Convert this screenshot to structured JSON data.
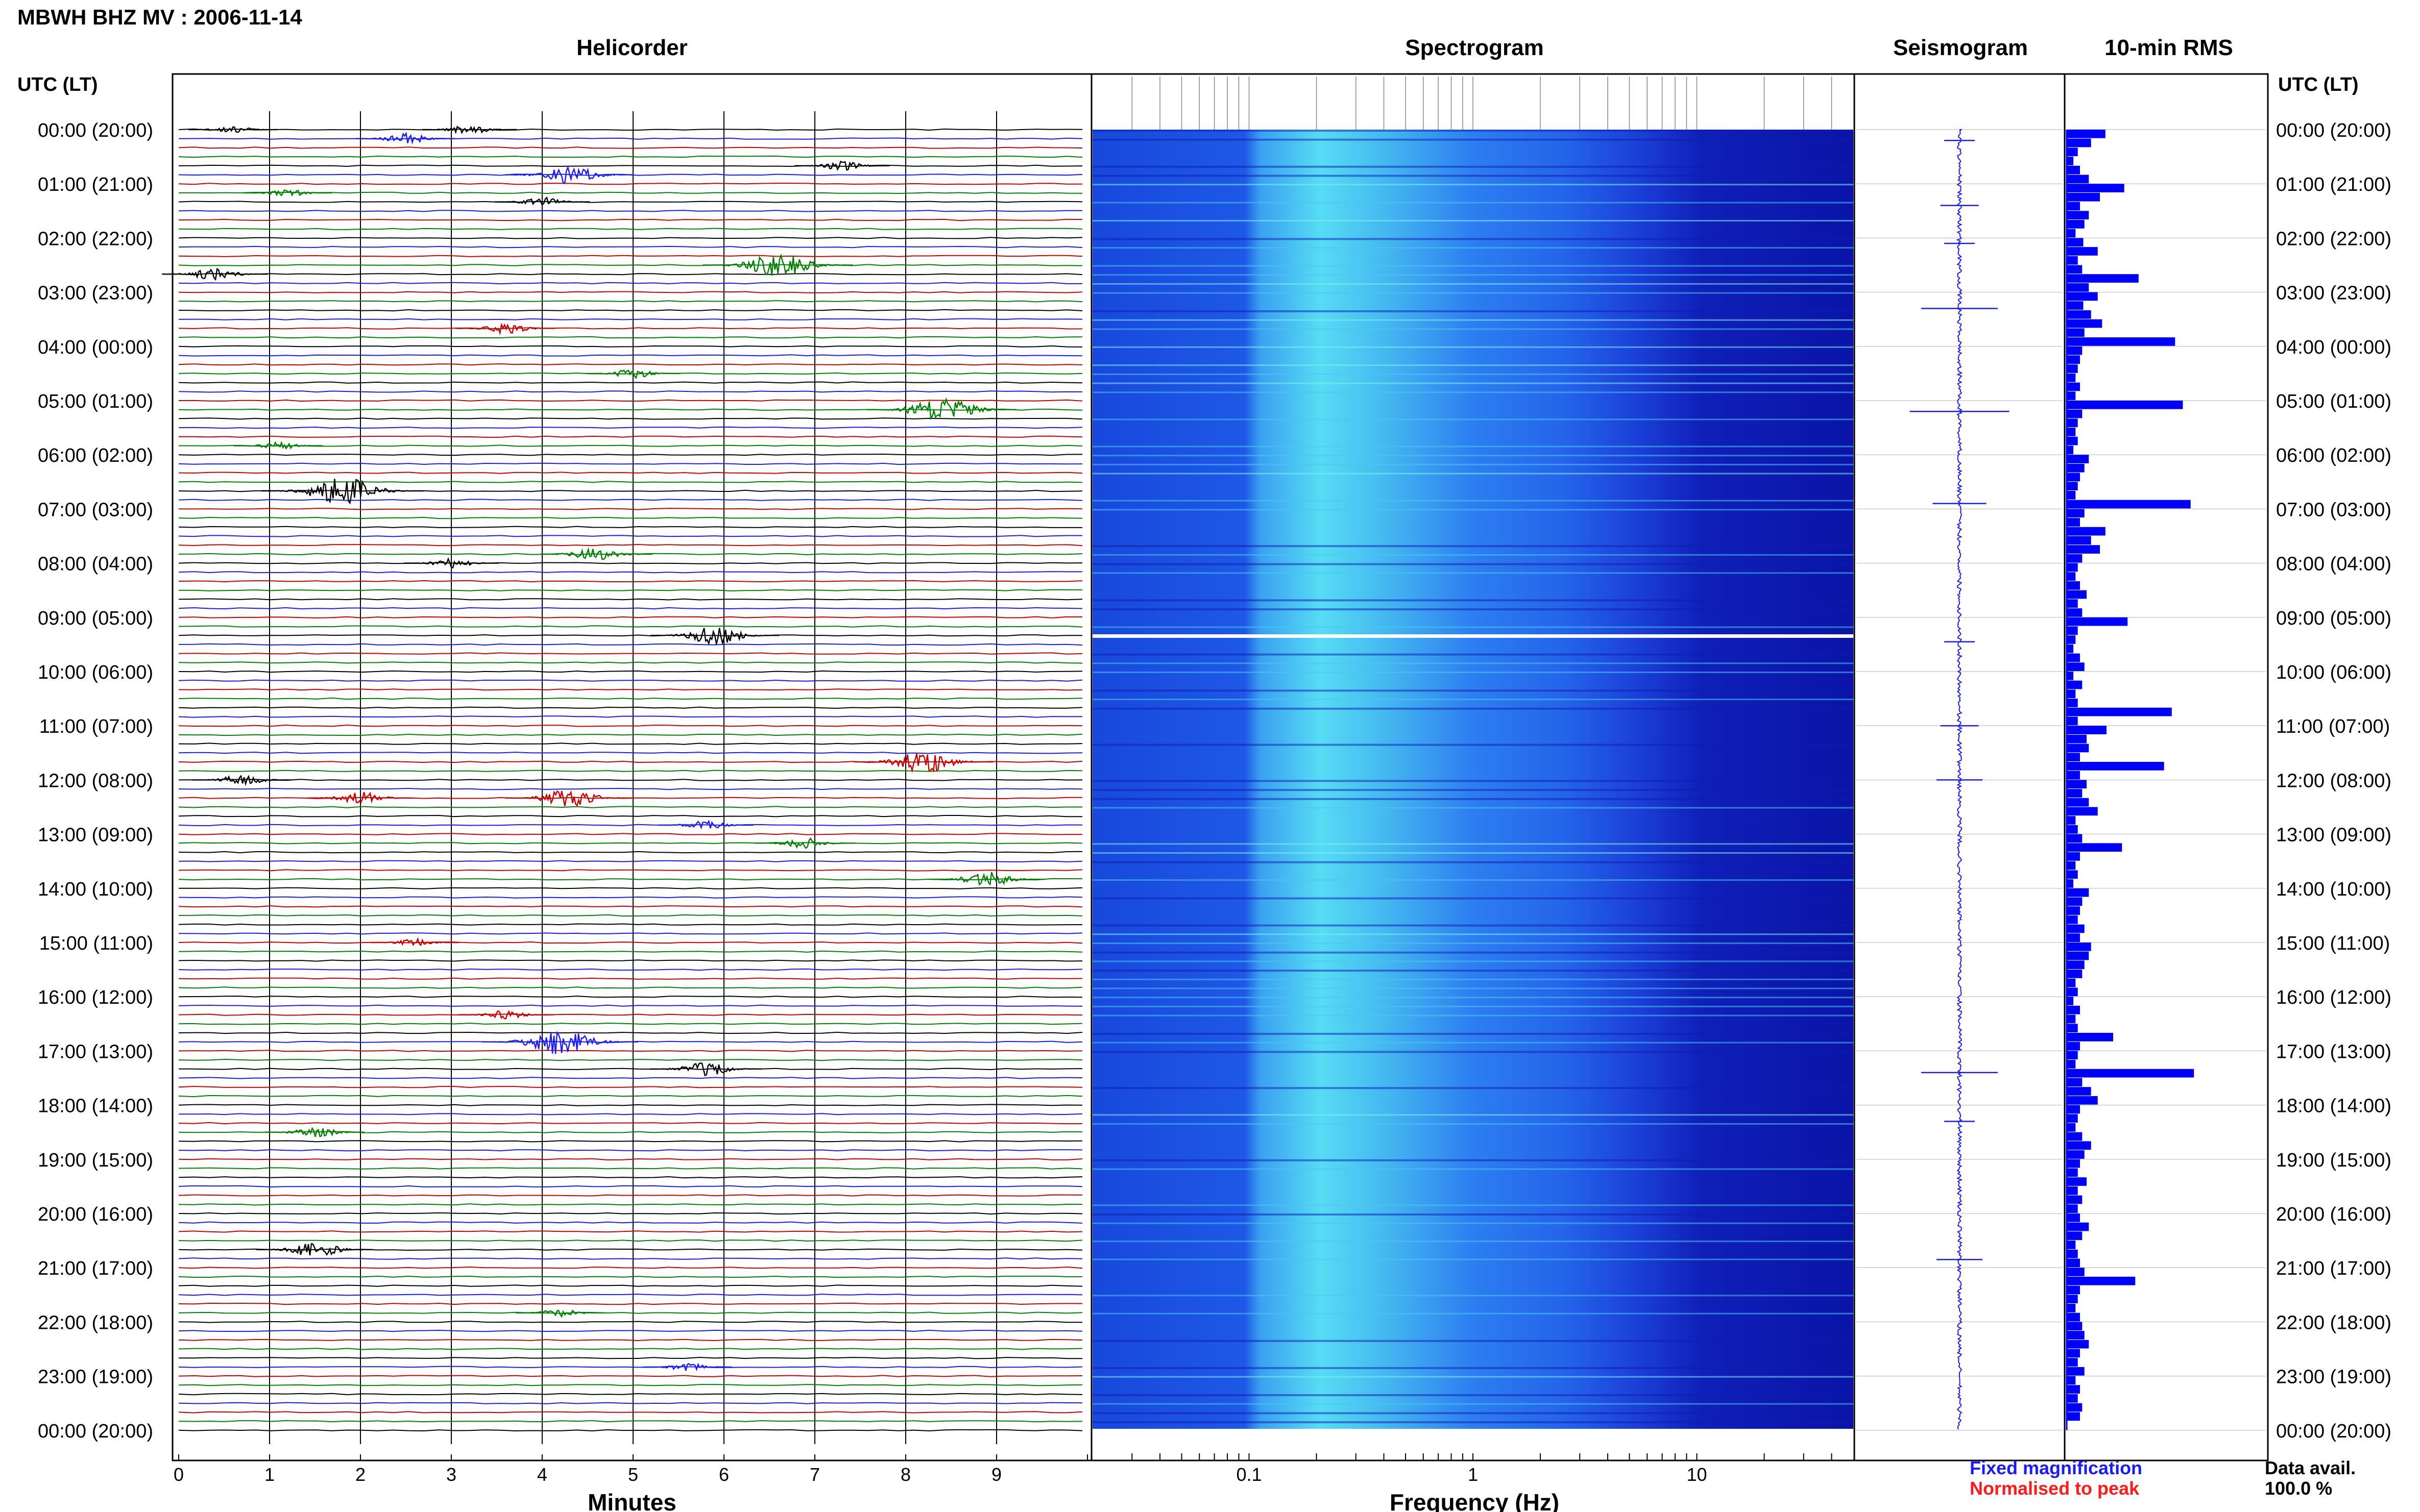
{
  "header": {
    "title": "MBWH BHZ MV : 2006-11-14",
    "utc_lt_left": "UTC (LT)",
    "utc_lt_right": "UTC (LT)"
  },
  "panels": {
    "helicorder": "Helicorder",
    "spectrogram": "Spectrogram",
    "seismogram": "Seismogram",
    "rms": "10-min RMS"
  },
  "time_labels": [
    "00:00 (20:00)",
    "01:00 (21:00)",
    "02:00 (22:00)",
    "03:00 (23:00)",
    "04:00 (00:00)",
    "05:00 (01:00)",
    "06:00 (02:00)",
    "07:00 (03:00)",
    "08:00 (04:00)",
    "09:00 (05:00)",
    "10:00 (06:00)",
    "11:00 (07:00)",
    "12:00 (08:00)",
    "13:00 (09:00)",
    "14:00 (10:00)",
    "15:00 (11:00)",
    "16:00 (12:00)",
    "17:00 (13:00)",
    "18:00 (14:00)",
    "19:00 (15:00)",
    "20:00 (16:00)",
    "21:00 (17:00)",
    "22:00 (18:00)",
    "23:00 (19:00)",
    "00:00 (20:00)"
  ],
  "footer": {
    "fixed_label": "Fixed magnification",
    "fixed_color": "#1a1aff",
    "normalised_label": "Normalised to peak",
    "normalised_color": "#ff1a1a",
    "data_avail_label": "Data avail.",
    "data_avail_value": "100.0 %"
  },
  "chart_data": {
    "type": "heatmap",
    "helicorder": {
      "xlabel": "Minutes",
      "x_ticks": [
        "0",
        "1",
        "2",
        "3",
        "4",
        "5",
        "6",
        "7",
        "8",
        "9"
      ],
      "xlim": [
        0,
        10
      ],
      "trace_colors": [
        "#000000",
        "#1a1aff",
        "#cc0000",
        "#008000"
      ],
      "traces_per_hour": 6,
      "events": [
        {
          "trace": 0,
          "minute": 0.6,
          "amp": 0.25
        },
        {
          "trace": 0,
          "minute": 3.2,
          "amp": 0.3
        },
        {
          "trace": 1,
          "minute": 2.5,
          "amp": 0.35
        },
        {
          "trace": 4,
          "minute": 7.3,
          "amp": 0.3
        },
        {
          "trace": 5,
          "minute": 4.3,
          "amp": 0.6
        },
        {
          "trace": 7,
          "minute": 1.2,
          "amp": 0.25
        },
        {
          "trace": 8,
          "minute": 4.0,
          "amp": 0.3
        },
        {
          "trace": 15,
          "minute": 6.6,
          "amp": 0.8
        },
        {
          "trace": 16,
          "minute": 0.4,
          "amp": 0.4
        },
        {
          "trace": 22,
          "minute": 3.6,
          "amp": 0.35
        },
        {
          "trace": 27,
          "minute": 5.0,
          "amp": 0.3
        },
        {
          "trace": 31,
          "minute": 8.4,
          "amp": 0.8
        },
        {
          "trace": 35,
          "minute": 1.1,
          "amp": 0.25
        },
        {
          "trace": 40,
          "minute": 1.8,
          "amp": 0.9
        },
        {
          "trace": 47,
          "minute": 4.6,
          "amp": 0.45
        },
        {
          "trace": 48,
          "minute": 3.0,
          "amp": 0.3
        },
        {
          "trace": 56,
          "minute": 5.9,
          "amp": 0.6
        },
        {
          "trace": 70,
          "minute": 8.2,
          "amp": 0.7
        },
        {
          "trace": 72,
          "minute": 0.7,
          "amp": 0.35
        },
        {
          "trace": 74,
          "minute": 2.0,
          "amp": 0.4
        },
        {
          "trace": 74,
          "minute": 4.3,
          "amp": 0.6
        },
        {
          "trace": 77,
          "minute": 5.8,
          "amp": 0.3
        },
        {
          "trace": 79,
          "minute": 6.9,
          "amp": 0.35
        },
        {
          "trace": 83,
          "minute": 8.9,
          "amp": 0.5
        },
        {
          "trace": 90,
          "minute": 2.6,
          "amp": 0.25
        },
        {
          "trace": 98,
          "minute": 3.6,
          "amp": 0.3
        },
        {
          "trace": 101,
          "minute": 4.2,
          "amp": 0.85
        },
        {
          "trace": 104,
          "minute": 5.8,
          "amp": 0.45
        },
        {
          "trace": 111,
          "minute": 1.5,
          "amp": 0.35
        },
        {
          "trace": 124,
          "minute": 1.5,
          "amp": 0.5
        },
        {
          "trace": 131,
          "minute": 4.2,
          "amp": 0.25
        },
        {
          "trace": 137,
          "minute": 5.6,
          "amp": 0.25
        }
      ]
    },
    "spectrogram": {
      "xlabel": "Frequency (Hz)",
      "x_scale": "log",
      "xlim": [
        0.02,
        50
      ],
      "x_ticks": [
        "0.1",
        "1",
        "10"
      ],
      "gap_utc": "09:20"
    },
    "seismogram": {
      "color": "#1a1aff",
      "spikes": [
        {
          "time_h": 0.2,
          "amp": 0.2
        },
        {
          "time_h": 1.4,
          "amp": 0.25
        },
        {
          "time_h": 2.1,
          "amp": 0.2
        },
        {
          "time_h": 3.3,
          "amp": 0.5
        },
        {
          "time_h": 5.2,
          "amp": 0.65
        },
        {
          "time_h": 6.9,
          "amp": 0.35
        },
        {
          "time_h": 9.45,
          "amp": 0.2
        },
        {
          "time_h": 11.0,
          "amp": 0.25
        },
        {
          "time_h": 12.0,
          "amp": 0.3
        },
        {
          "time_h": 17.4,
          "amp": 0.5
        },
        {
          "time_h": 18.3,
          "amp": 0.2
        },
        {
          "time_h": 20.85,
          "amp": 0.3
        }
      ]
    },
    "rms": {
      "color": "#0000ff",
      "interval_minutes": 10,
      "values": [
        0.35,
        0.22,
        0.1,
        0.06,
        0.12,
        0.2,
        0.52,
        0.3,
        0.12,
        0.2,
        0.16,
        0.08,
        0.15,
        0.28,
        0.1,
        0.14,
        0.65,
        0.2,
        0.28,
        0.15,
        0.22,
        0.32,
        0.16,
        0.98,
        0.14,
        0.12,
        0.1,
        0.08,
        0.12,
        0.08,
        1.05,
        0.14,
        0.1,
        0.08,
        0.1,
        0.06,
        0.2,
        0.16,
        0.12,
        0.1,
        0.08,
        1.12,
        0.16,
        0.12,
        0.35,
        0.22,
        0.3,
        0.14,
        0.1,
        0.08,
        0.12,
        0.18,
        0.1,
        0.14,
        0.55,
        0.1,
        0.08,
        0.06,
        0.12,
        0.16,
        0.06,
        0.14,
        0.08,
        0.1,
        0.95,
        0.1,
        0.36,
        0.18,
        0.2,
        0.12,
        0.88,
        0.12,
        0.18,
        0.14,
        0.2,
        0.28,
        0.08,
        0.1,
        0.14,
        0.5,
        0.12,
        0.08,
        0.1,
        0.06,
        0.2,
        0.14,
        0.12,
        0.1,
        0.16,
        0.12,
        0.22,
        0.2,
        0.16,
        0.14,
        0.08,
        0.1,
        0.06,
        0.12,
        0.08,
        0.1,
        0.42,
        0.12,
        0.1,
        0.08,
        1.15,
        0.14,
        0.22,
        0.28,
        0.12,
        0.1,
        0.08,
        0.14,
        0.22,
        0.16,
        0.12,
        0.1,
        0.18,
        0.1,
        0.14,
        0.1,
        0.12,
        0.2,
        0.14,
        0.08,
        0.1,
        0.12,
        0.16,
        0.62,
        0.12,
        0.1,
        0.08,
        0.12,
        0.14,
        0.16,
        0.2,
        0.12,
        0.1,
        0.16,
        0.08,
        0.12,
        0.1,
        0.14,
        0.12
      ]
    }
  }
}
